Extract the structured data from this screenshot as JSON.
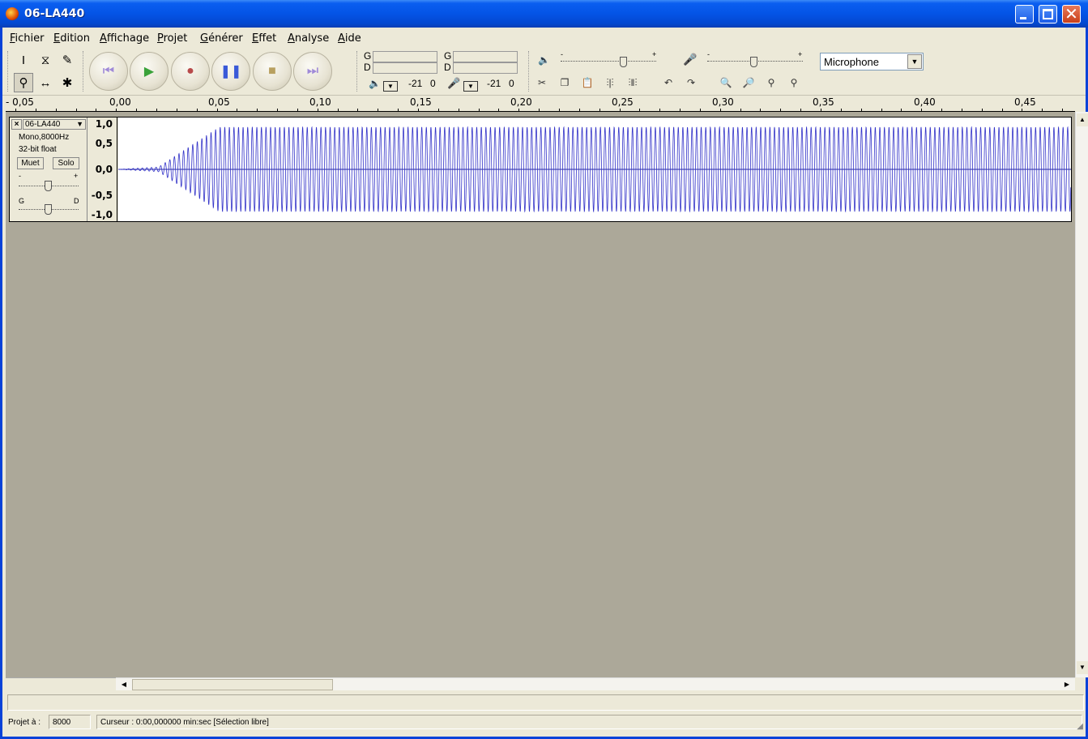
{
  "window": {
    "title": "06-LA440"
  },
  "menu": {
    "items": [
      "Fichier",
      "Edition",
      "Affichage",
      "Projet",
      "Générer",
      "Effet",
      "Analyse",
      "Aide"
    ]
  },
  "meters": {
    "play_g": "G",
    "play_d": "D",
    "rec_g": "G",
    "rec_d": "D",
    "play_scale": [
      "-21",
      "0"
    ],
    "rec_scale": [
      "-21",
      "0"
    ]
  },
  "mixer": {
    "minus": "-",
    "plus": "+",
    "input_source": "Microphone"
  },
  "ruler": {
    "labels": [
      "- 0,05",
      "0,00",
      "0,05",
      "0,10",
      "0,15",
      "0,20",
      "0,25",
      "0,30",
      "0,35",
      "0,40",
      "0,45"
    ]
  },
  "track": {
    "close": "×",
    "name": "06-LA440",
    "format": "Mono,8000Hz",
    "bits": "32-bit float",
    "mute": "Muet",
    "solo": "Solo",
    "gain_minus": "-",
    "gain_plus": "+",
    "pan_left": "G",
    "pan_right": "D",
    "vruler": [
      "1,0",
      "0,5",
      "0,0",
      "-0,5",
      "-1,0"
    ]
  },
  "status": {
    "project_rate_label": "Projet à :",
    "project_rate": "8000",
    "cursor": "Curseur : 0:00,000000 min:sec  [Sélection libre]"
  },
  "colors": {
    "waveform": "#3232c8",
    "track_bg": "#ffffff",
    "area_bg": "#aca899",
    "titlebar": "#0454e6"
  }
}
